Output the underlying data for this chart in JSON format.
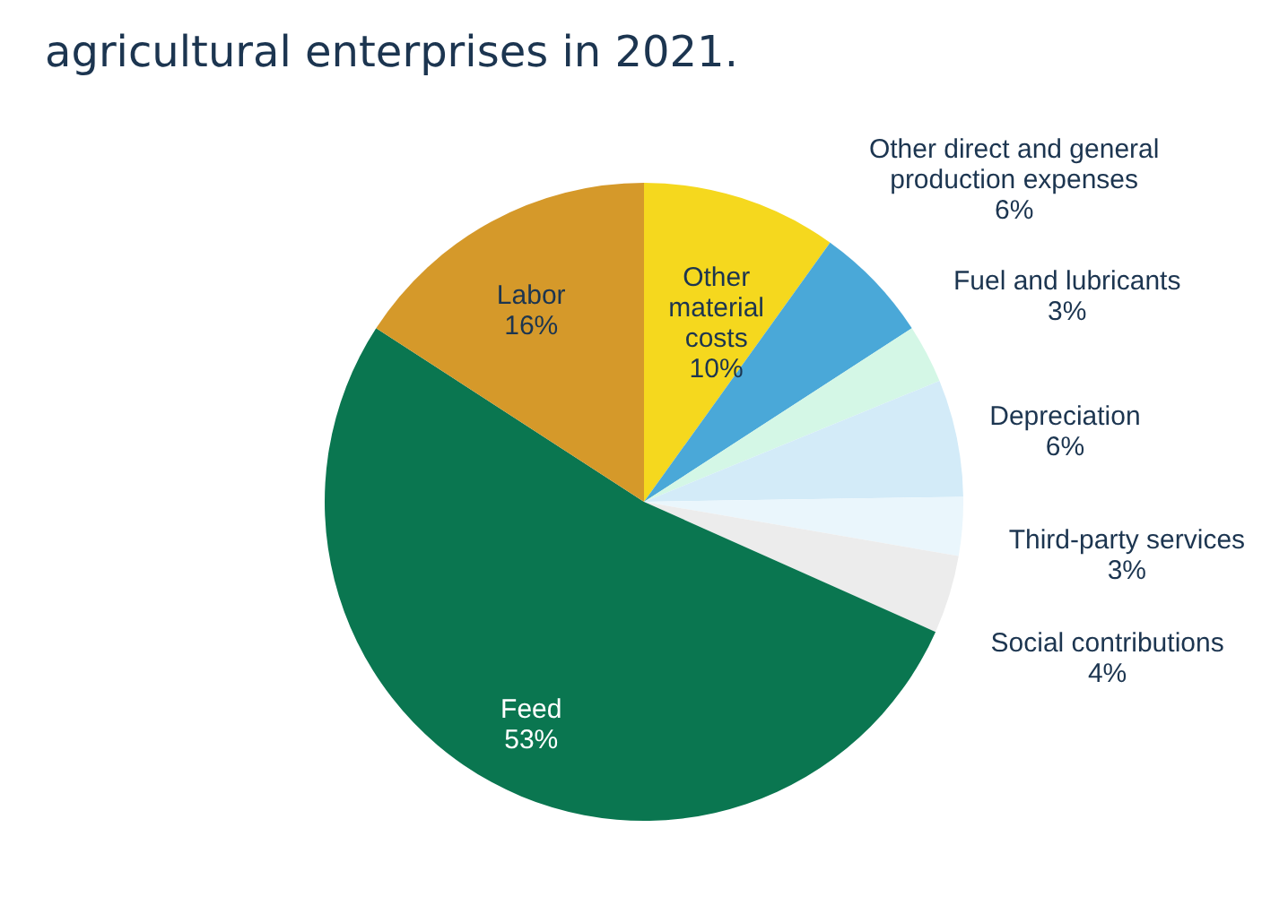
{
  "chart_data": {
    "type": "pie",
    "title": "agricultural enterprises in 2021.",
    "categories": [
      "Other material costs",
      "Other direct and general production expenses",
      "Fuel and lubricants",
      "Depreciation",
      "Third-party services",
      "Social contributions",
      "Feed",
      "Labor"
    ],
    "values": [
      10,
      6,
      3,
      6,
      3,
      4,
      53,
      16
    ],
    "value_labels": [
      "10%",
      "6%",
      "3%",
      "6%",
      "3%",
      "4%",
      "53%",
      "16%"
    ],
    "colors": [
      "#f5d81e",
      "#4aa8d8",
      "#d4f7e6",
      "#d3ebf8",
      "#eaf6fc",
      "#ececec",
      "#0a7650",
      "#d5992a"
    ],
    "legend": false
  }
}
